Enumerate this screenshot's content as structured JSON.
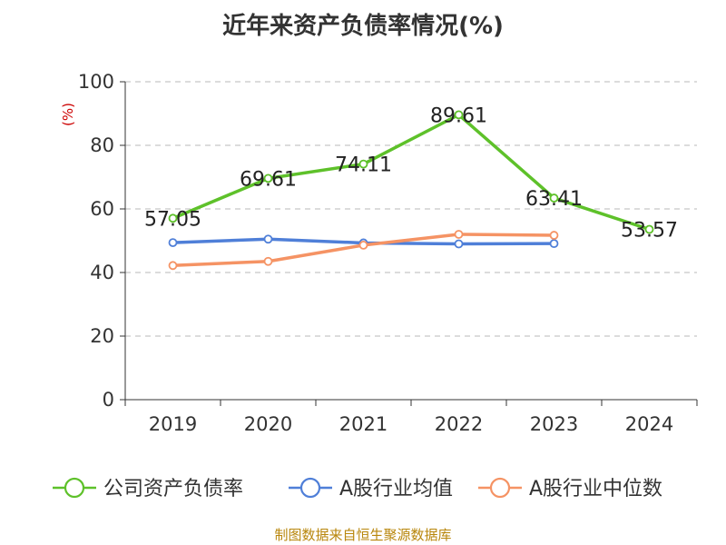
{
  "chart_data": {
    "type": "line",
    "title": "近年来资产负债率情况(%)",
    "ylabel": "(%)",
    "xlabel": "",
    "ylim": [
      0,
      100
    ],
    "yticks": [
      0,
      20,
      40,
      60,
      80,
      100
    ],
    "categories": [
      "2019",
      "2020",
      "2021",
      "2022",
      "2023",
      "2024"
    ],
    "grid": true,
    "legend_position": "bottom",
    "series": [
      {
        "name": "公司资产负债率",
        "color": "#5ec12a",
        "values": [
          57.05,
          69.61,
          74.11,
          89.61,
          63.41,
          53.57
        ],
        "labels": [
          "57.05",
          "69.61",
          "74.11",
          "89.61",
          "63.41",
          "53.57"
        ]
      },
      {
        "name": "A股行业均值",
        "color": "#4f7fd8",
        "values": [
          49.4,
          50.5,
          49.3,
          49.0,
          49.1,
          null
        ]
      },
      {
        "name": "A股行业中位数",
        "color": "#f59364",
        "values": [
          42.2,
          43.5,
          48.6,
          52.0,
          51.7,
          null
        ]
      }
    ]
  },
  "footer": "制图数据来自恒生聚源数据库"
}
